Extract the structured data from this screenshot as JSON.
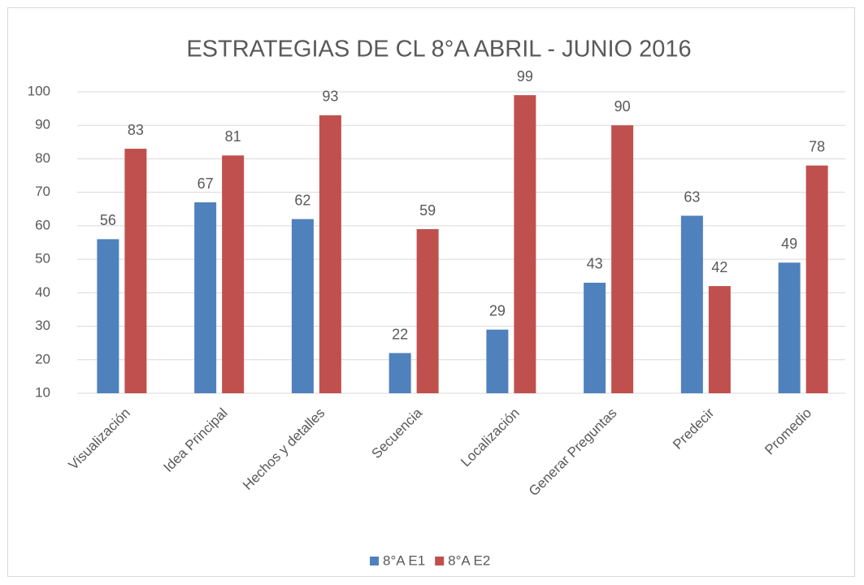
{
  "chart_data": {
    "type": "bar",
    "title": "ESTRATEGIAS  DE CL 8°A ABRIL - JUNIO 2016",
    "categories": [
      "Visualización",
      "Idea Principal",
      "Hechos y detalles",
      "Secuencia",
      "Localización",
      "Generar Preguntas",
      "Predecir",
      "Promedio"
    ],
    "series": [
      {
        "name": "8°A E1",
        "color": "#4f81bd",
        "values": [
          56,
          67,
          62,
          22,
          29,
          43,
          63,
          49
        ]
      },
      {
        "name": "8°A E2",
        "color": "#c0504d",
        "values": [
          83,
          81,
          93,
          59,
          99,
          90,
          42,
          78
        ]
      }
    ],
    "ylim": [
      10,
      100
    ],
    "yticks": [
      10,
      20,
      30,
      40,
      50,
      60,
      70,
      80,
      90,
      100
    ],
    "grid": true,
    "legend": "bottom"
  }
}
